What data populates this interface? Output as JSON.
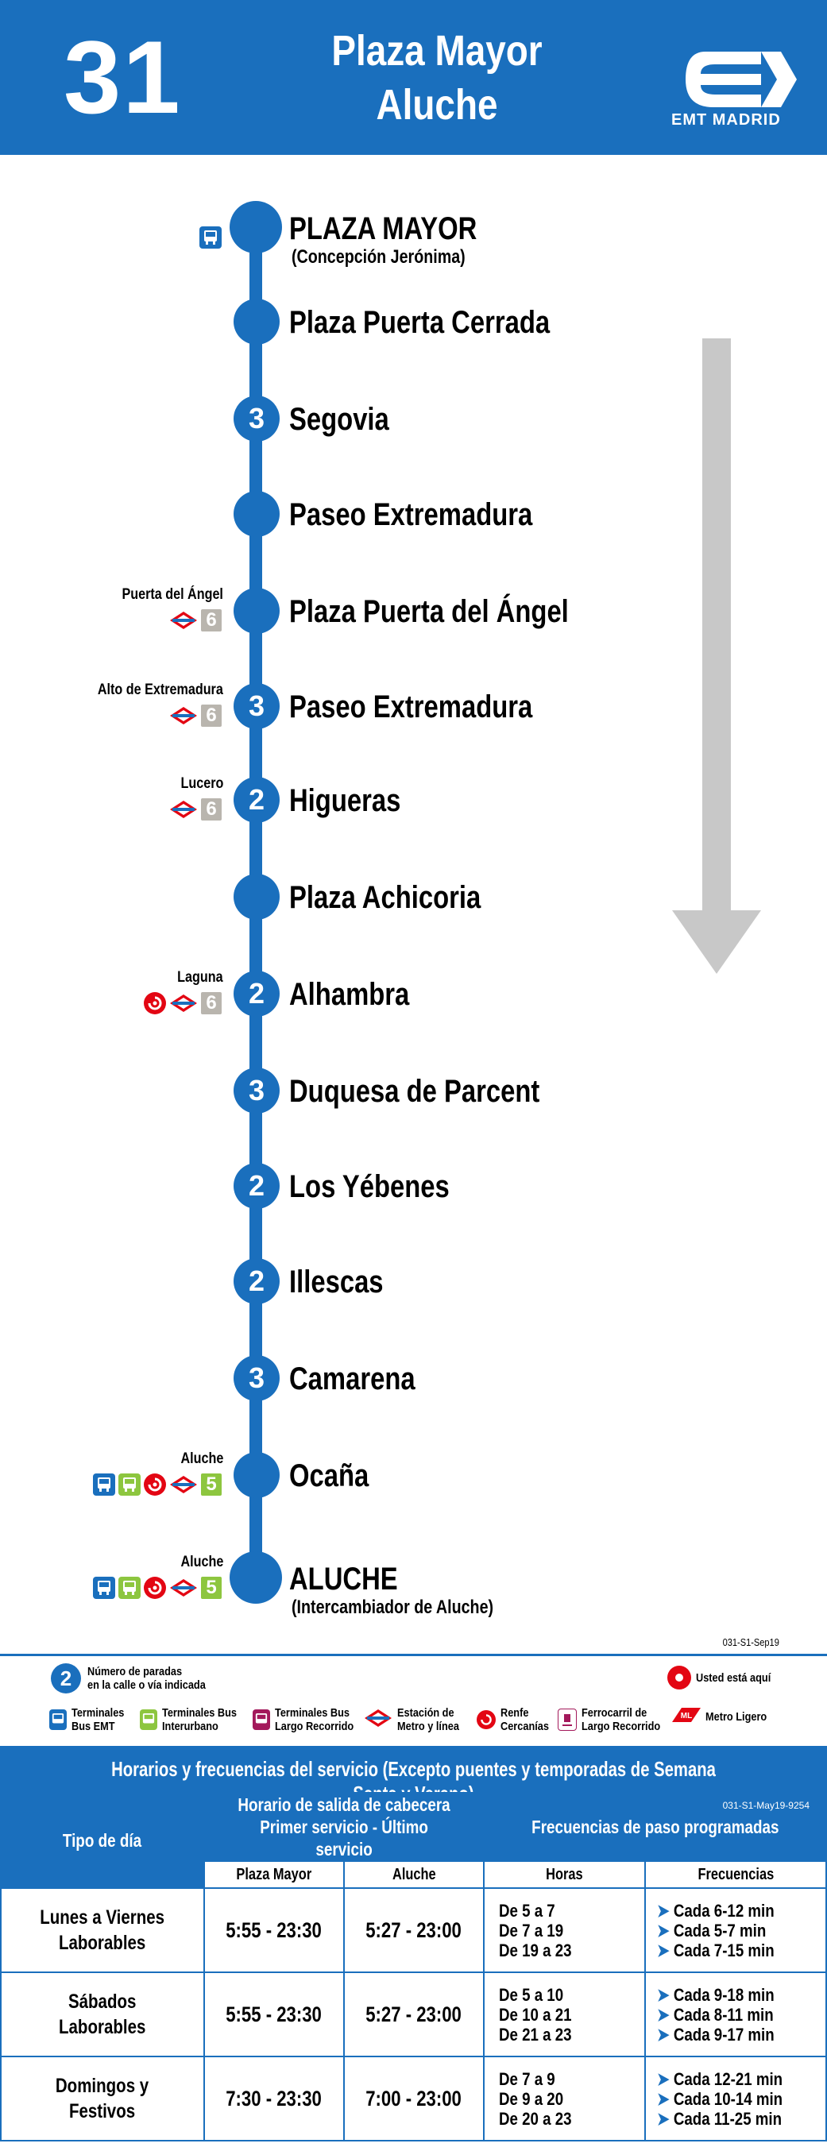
{
  "header": {
    "route_number": "31",
    "title_line1": "Plaza Mayor",
    "title_line2": "Aluche",
    "logo_text": "EMT MADRID"
  },
  "stops": [
    {
      "name": "PLAZA MAYOR",
      "sub": "(Concepción Jerónima)",
      "count": "",
      "connection": "",
      "icons": [
        "bus-emt"
      ]
    },
    {
      "name": "Plaza Puerta Cerrada",
      "sub": "",
      "count": "",
      "connection": "",
      "icons": []
    },
    {
      "name": "Segovia",
      "sub": "",
      "count": "3",
      "connection": "",
      "icons": []
    },
    {
      "name": "Paseo Extremadura",
      "sub": "",
      "count": "",
      "connection": "",
      "icons": []
    },
    {
      "name": "Plaza Puerta del Ángel",
      "sub": "",
      "count": "",
      "connection": "Puerta del Ángel",
      "icons": [
        "metro",
        "line-6"
      ]
    },
    {
      "name": "Paseo Extremadura",
      "sub": "",
      "count": "3",
      "connection": "Alto de Extremadura",
      "icons": [
        "metro",
        "line-6"
      ]
    },
    {
      "name": "Higueras",
      "sub": "",
      "count": "2",
      "connection": "Lucero",
      "icons": [
        "metro",
        "line-6"
      ]
    },
    {
      "name": "Plaza Achicoria",
      "sub": "",
      "count": "",
      "connection": "",
      "icons": []
    },
    {
      "name": "Alhambra",
      "sub": "",
      "count": "2",
      "connection": "Laguna",
      "icons": [
        "renfe",
        "metro",
        "line-6"
      ]
    },
    {
      "name": "Duquesa de Parcent",
      "sub": "",
      "count": "3",
      "connection": "",
      "icons": []
    },
    {
      "name": "Los Yébenes",
      "sub": "",
      "count": "2",
      "connection": "",
      "icons": []
    },
    {
      "name": "Illescas",
      "sub": "",
      "count": "2",
      "connection": "",
      "icons": []
    },
    {
      "name": "Camarena",
      "sub": "",
      "count": "3",
      "connection": "",
      "icons": []
    },
    {
      "name": "Ocaña",
      "sub": "",
      "count": "",
      "connection": "Aluche",
      "icons": [
        "bus-emt",
        "bus-interurbano",
        "renfe",
        "metro",
        "line-5"
      ]
    },
    {
      "name": "ALUCHE",
      "sub": "(Intercambiador de Aluche)",
      "count": "",
      "connection": "Aluche",
      "icons": [
        "bus-emt",
        "bus-interurbano",
        "renfe",
        "metro",
        "line-5"
      ]
    }
  ],
  "legend": {
    "code": "031-S1-Sep19",
    "stops_number_icon": "2",
    "stops_number_text_1": "Número de paradas",
    "stops_number_text_2": "en la calle o vía indicada",
    "here_text": "Usted está aquí",
    "items": [
      {
        "icon": "bus-emt-icon",
        "line1": "Terminales",
        "line2": "Bus EMT"
      },
      {
        "icon": "bus-interurbano-icon",
        "line1": "Terminales Bus",
        "line2": "Interurbano"
      },
      {
        "icon": "bus-largo-recorrido-icon",
        "line1": "Terminales Bus",
        "line2": "Largo Recorrido"
      },
      {
        "icon": "metro-icon",
        "line1": "Estación de",
        "line2": "Metro y línea"
      },
      {
        "icon": "renfe-icon",
        "line1": "Renfe",
        "line2": "Cercanías"
      },
      {
        "icon": "train-icon",
        "line1": "Ferrocarril de",
        "line2": "Largo Recorrido"
      },
      {
        "icon": "metro-ligero-icon",
        "line1": "Metro Ligero",
        "line2": ""
      }
    ]
  },
  "timetable": {
    "title": "Horarios y frecuencias del servicio (Excepto puentes y temporadas de Semana Santa y Verano)",
    "code": "031-S1-May19-9254",
    "col_tipo": "Tipo de día",
    "col_horario_1": "Horario de salida de cabecera",
    "col_horario_2": "Primer servicio - Último servicio",
    "col_frecuencias": "Frecuencias de paso programadas",
    "sub_origin": "Plaza Mayor",
    "sub_dest": "Aluche",
    "sub_horas": "Horas",
    "sub_frec": "Frecuencias",
    "rows": [
      {
        "tipo_1": "Lunes a Viernes",
        "tipo_2": "Laborables",
        "origin": "5:55 - 23:30",
        "dest": "5:27 - 23:00",
        "horas": [
          "De 5 a 7",
          "De 7 a 19",
          "De 19 a 23"
        ],
        "frecs": [
          "Cada 6-12 min",
          "Cada 5-7 min",
          "Cada 7-15 min"
        ]
      },
      {
        "tipo_1": "Sábados",
        "tipo_2": "Laborables",
        "origin": "5:55 - 23:30",
        "dest": "5:27 - 23:00",
        "horas": [
          "De 5 a 10",
          "De 10 a 21",
          "De 21 a 23"
        ],
        "frecs": [
          "Cada 9-18 min",
          "Cada 8-11  min",
          "Cada 9-17 min"
        ]
      },
      {
        "tipo_1": "Domingos y",
        "tipo_2": "Festivos",
        "origin": "7:30 - 23:30",
        "dest": "7:00 - 23:00",
        "horas": [
          "De 7 a 9",
          "De 9 a 20",
          "De 20 a 23"
        ],
        "frecs": [
          "Cada 12-21 min",
          "Cada 10-14  min",
          "Cada 11-25 min"
        ]
      }
    ]
  },
  "colors": {
    "brand": "#1a6fbd",
    "renfe": "#e30613",
    "interurbano": "#8dc63f",
    "line6": "#b9b5ae",
    "arrow": "#c8c8c8"
  }
}
